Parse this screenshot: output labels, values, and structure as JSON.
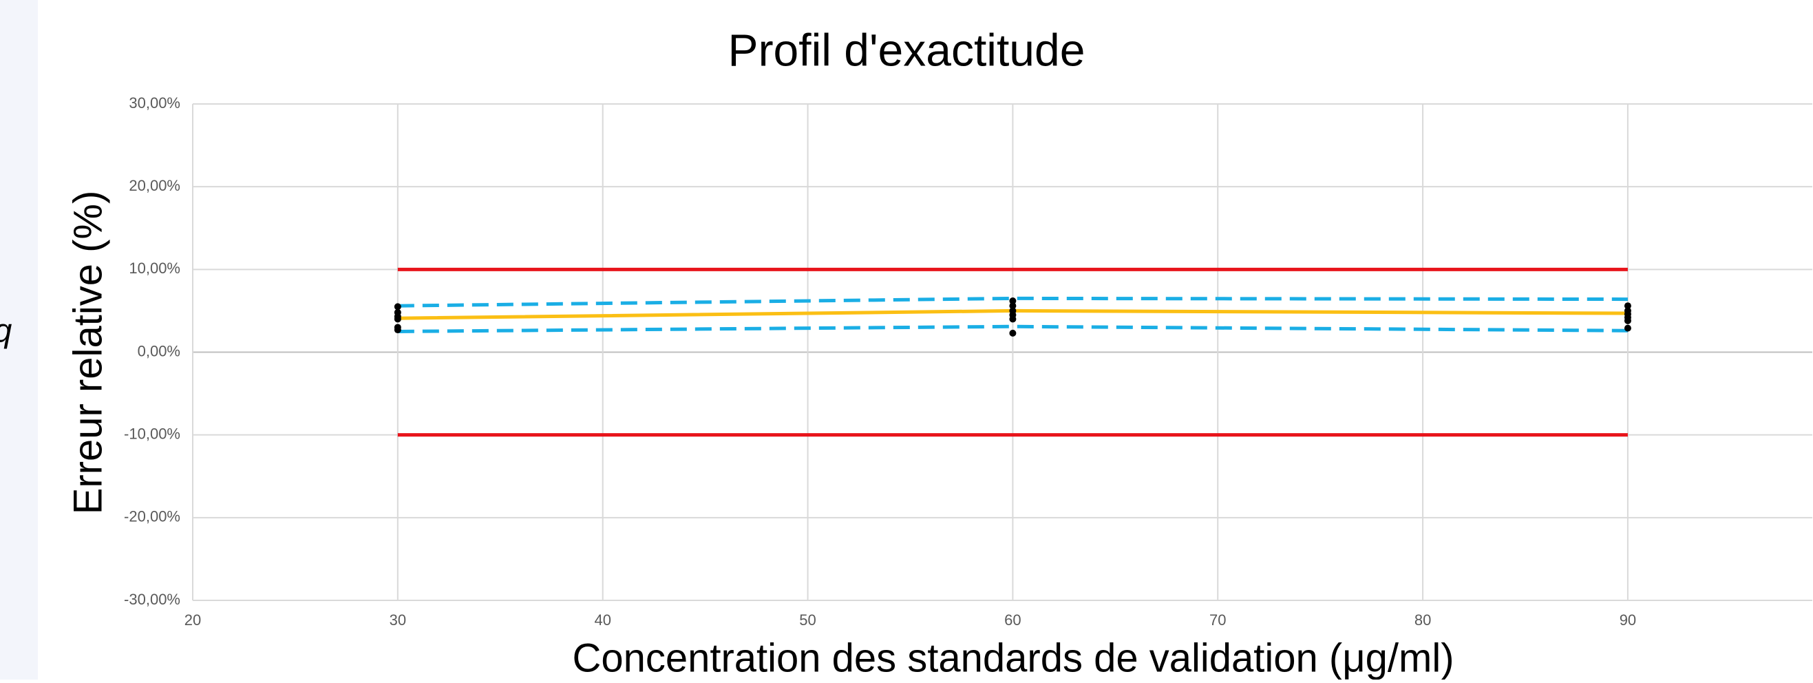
{
  "chart_data": {
    "type": "line",
    "title": "Profil d'exactitude",
    "xlabel": "Concentration des standards de validation (μg/ml)",
    "ylabel": "Erreur relative (%)",
    "side_text": "q",
    "xlim": [
      20,
      99
    ],
    "xticks": [
      20,
      30,
      40,
      50,
      60,
      70,
      80,
      90
    ],
    "ylim": [
      -30,
      30
    ],
    "yticks": [
      {
        "value": -30,
        "label": "-30,00%"
      },
      {
        "value": -20,
        "label": "-20,00%"
      },
      {
        "value": -10,
        "label": "-10,00%"
      },
      {
        "value": 0,
        "label": "0,00%"
      },
      {
        "value": 10,
        "label": "10,00%"
      },
      {
        "value": 20,
        "label": "20,00%"
      },
      {
        "value": 30,
        "label": "30,00%"
      }
    ],
    "grid": true,
    "series": [
      {
        "style": "solid",
        "color": "#e8141b",
        "x": [
          30,
          90
        ],
        "values": [
          10,
          10
        ]
      },
      {
        "style": "solid",
        "color": "#e8141b",
        "x": [
          30,
          90
        ],
        "values": [
          -10,
          -10
        ]
      },
      {
        "style": "dashed",
        "color": "#1aaee5",
        "x": [
          30,
          60,
          90
        ],
        "values": [
          5.6,
          6.5,
          6.4
        ]
      },
      {
        "style": "dashed",
        "color": "#1aaee5",
        "x": [
          30,
          60,
          90
        ],
        "values": [
          2.5,
          3.1,
          2.6
        ]
      },
      {
        "style": "solid",
        "color": "#fbbf14",
        "x": [
          30,
          60,
          90
        ],
        "values": [
          4.1,
          5.0,
          4.7
        ]
      },
      {
        "style": "points",
        "color": "#000000",
        "x": [
          30,
          30,
          30,
          30,
          30,
          30,
          60,
          60,
          60,
          60,
          60,
          60,
          90,
          90,
          90,
          90,
          90,
          90
        ],
        "values": [
          5.5,
          4.8,
          4.3,
          4.0,
          3.0,
          2.7,
          6.2,
          5.6,
          5.0,
          4.5,
          4.0,
          2.3,
          5.6,
          5.0,
          4.6,
          4.2,
          3.8,
          2.9
        ]
      }
    ]
  }
}
